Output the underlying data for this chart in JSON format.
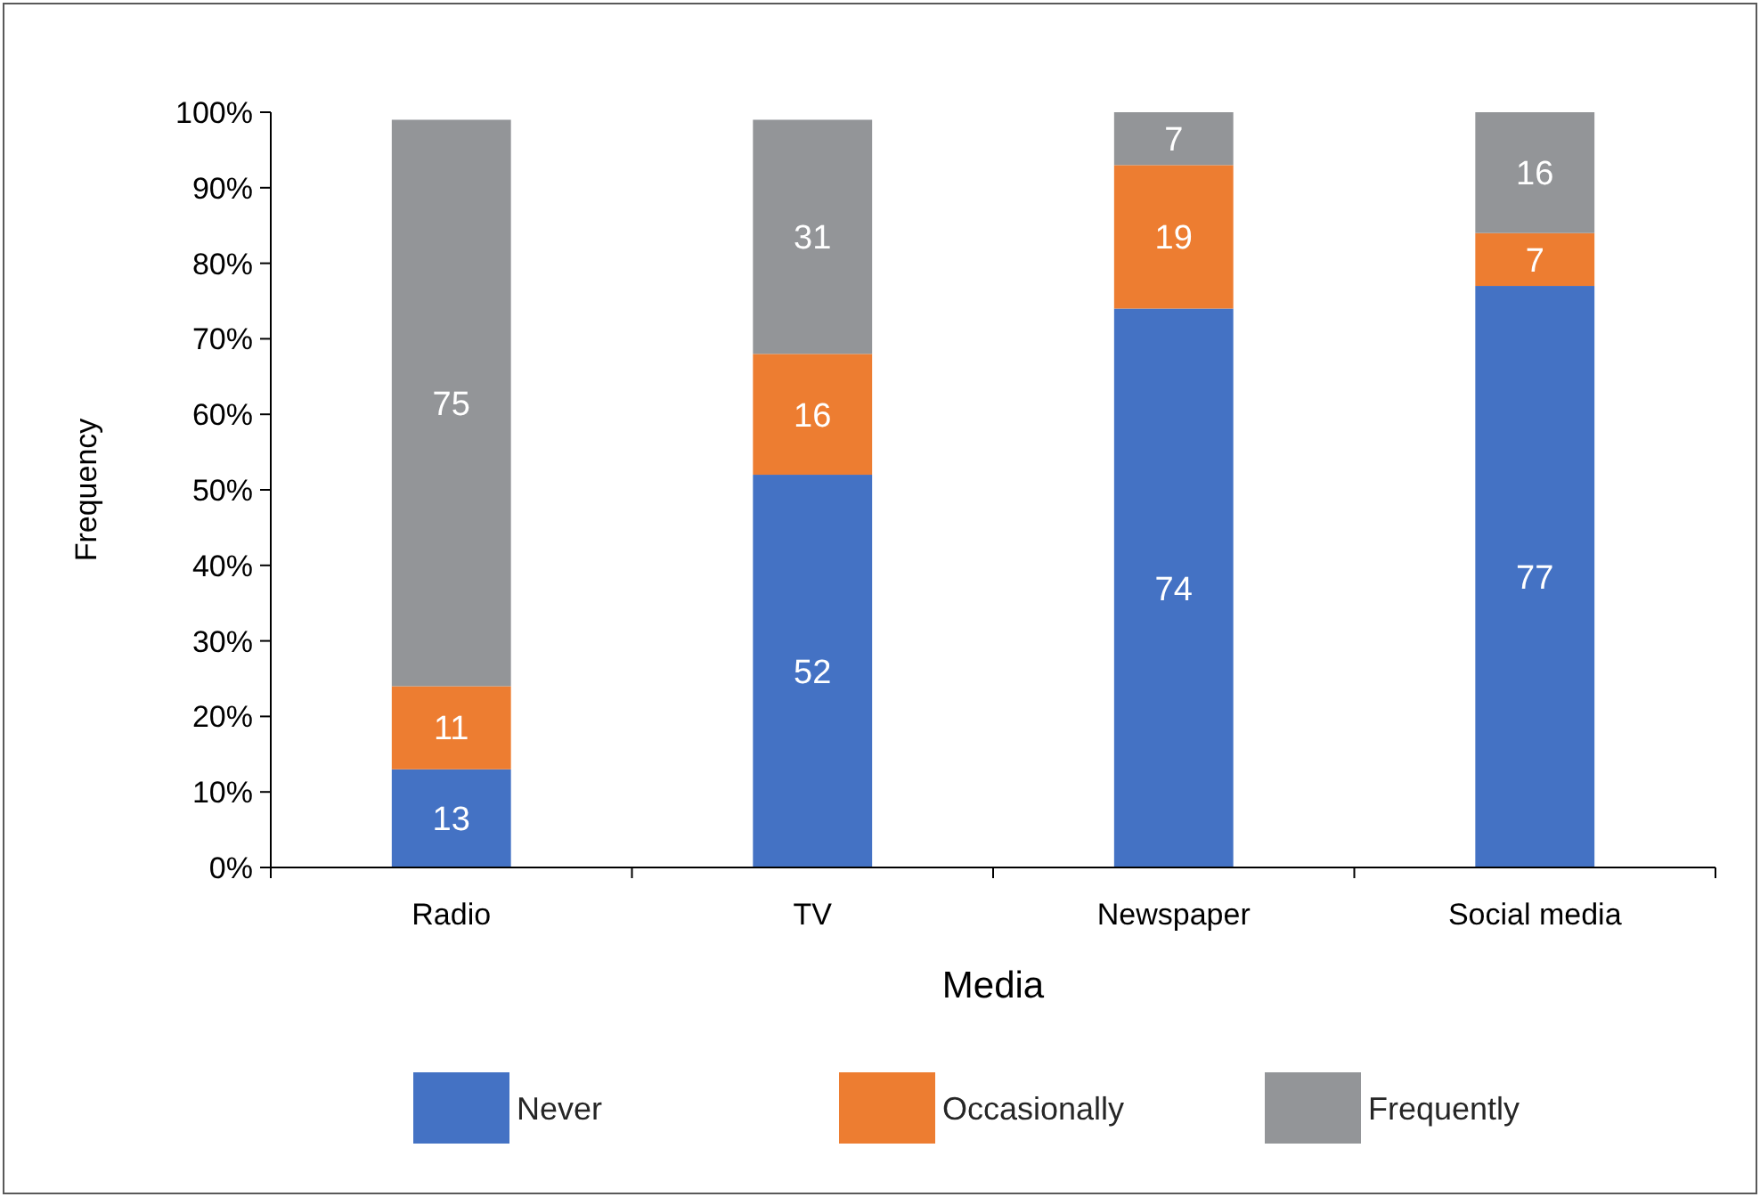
{
  "chart_data": {
    "type": "bar",
    "stacked": true,
    "xlabel": "Media",
    "ylabel": "Frequency",
    "categories": [
      "Radio",
      "TV",
      "Newspaper",
      "Social media"
    ],
    "series": [
      {
        "name": "Never",
        "color": "#4472c4",
        "values": [
          13,
          52,
          74,
          77
        ]
      },
      {
        "name": "Occasionally",
        "color": "#ed7d31",
        "values": [
          11,
          16,
          19,
          7
        ]
      },
      {
        "name": "Frequently",
        "color": "#939598",
        "values": [
          75,
          31,
          7,
          16
        ]
      }
    ],
    "ylim": [
      0,
      100
    ],
    "yticks": [
      {
        "value": 0,
        "label": "0%"
      },
      {
        "value": 10,
        "label": "10%"
      },
      {
        "value": 20,
        "label": "20%"
      },
      {
        "value": 30,
        "label": "30%"
      },
      {
        "value": 40,
        "label": "40%"
      },
      {
        "value": 50,
        "label": "50%"
      },
      {
        "value": 60,
        "label": "60%"
      },
      {
        "value": 70,
        "label": "70%"
      },
      {
        "value": 80,
        "label": "80%"
      },
      {
        "value": 90,
        "label": "90%"
      },
      {
        "value": 100,
        "label": "100%"
      }
    ],
    "data_labels": true,
    "grid": false,
    "legend": "bottom"
  }
}
